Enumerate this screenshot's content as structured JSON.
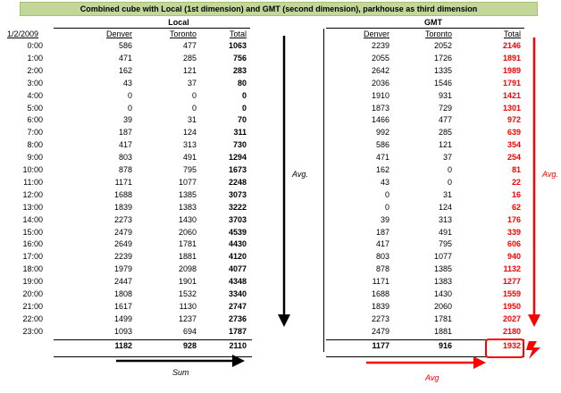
{
  "title": "Combined cube with Local (1st dimension) and GMT (second dimension), parkhouse as third dimension",
  "local": {
    "label": "Local",
    "date": "1/2/2009",
    "headers": [
      "Denver",
      "Toronto",
      "Total"
    ],
    "rows": [
      {
        "hour": "0:00",
        "denver": "586",
        "toronto": "477",
        "total": "1063"
      },
      {
        "hour": "1:00",
        "denver": "471",
        "toronto": "285",
        "total": "756"
      },
      {
        "hour": "2:00",
        "denver": "162",
        "toronto": "121",
        "total": "283"
      },
      {
        "hour": "3:00",
        "denver": "43",
        "toronto": "37",
        "total": "80"
      },
      {
        "hour": "4:00",
        "denver": "0",
        "toronto": "0",
        "total": "0"
      },
      {
        "hour": "5:00",
        "denver": "0",
        "toronto": "0",
        "total": "0"
      },
      {
        "hour": "6:00",
        "denver": "39",
        "toronto": "31",
        "total": "70"
      },
      {
        "hour": "7:00",
        "denver": "187",
        "toronto": "124",
        "total": "311"
      },
      {
        "hour": "8:00",
        "denver": "417",
        "toronto": "313",
        "total": "730"
      },
      {
        "hour": "9:00",
        "denver": "803",
        "toronto": "491",
        "total": "1294"
      },
      {
        "hour": "10:00",
        "denver": "878",
        "toronto": "795",
        "total": "1673"
      },
      {
        "hour": "11:00",
        "denver": "1171",
        "toronto": "1077",
        "total": "2248"
      },
      {
        "hour": "12:00",
        "denver": "1688",
        "toronto": "1385",
        "total": "3073"
      },
      {
        "hour": "13:00",
        "denver": "1839",
        "toronto": "1383",
        "total": "3222"
      },
      {
        "hour": "14:00",
        "denver": "2273",
        "toronto": "1430",
        "total": "3703"
      },
      {
        "hour": "15:00",
        "denver": "2479",
        "toronto": "2060",
        "total": "4539"
      },
      {
        "hour": "16:00",
        "denver": "2649",
        "toronto": "1781",
        "total": "4430"
      },
      {
        "hour": "17:00",
        "denver": "2239",
        "toronto": "1881",
        "total": "4120"
      },
      {
        "hour": "18:00",
        "denver": "1979",
        "toronto": "2098",
        "total": "4077"
      },
      {
        "hour": "19:00",
        "denver": "2447",
        "toronto": "1901",
        "total": "4348"
      },
      {
        "hour": "20:00",
        "denver": "1808",
        "toronto": "1532",
        "total": "3340"
      },
      {
        "hour": "21:00",
        "denver": "1617",
        "toronto": "1130",
        "total": "2747"
      },
      {
        "hour": "22:00",
        "denver": "1499",
        "toronto": "1237",
        "total": "2736"
      },
      {
        "hour": "23:00",
        "denver": "1093",
        "toronto": "694",
        "total": "1787"
      }
    ],
    "avg": {
      "denver": "1182",
      "toronto": "928",
      "total": "2110"
    }
  },
  "gmt": {
    "label": "GMT",
    "headers": [
      "Denver",
      "Toronto",
      "Total"
    ],
    "rows": [
      {
        "denver": "2239",
        "toronto": "2052",
        "total": "2146"
      },
      {
        "denver": "2055",
        "toronto": "1726",
        "total": "1891"
      },
      {
        "denver": "2642",
        "toronto": "1335",
        "total": "1989"
      },
      {
        "denver": "2036",
        "toronto": "1546",
        "total": "1791"
      },
      {
        "denver": "1910",
        "toronto": "931",
        "total": "1421"
      },
      {
        "denver": "1873",
        "toronto": "729",
        "total": "1301"
      },
      {
        "denver": "1466",
        "toronto": "477",
        "total": "972"
      },
      {
        "denver": "992",
        "toronto": "285",
        "total": "639"
      },
      {
        "denver": "586",
        "toronto": "121",
        "total": "354"
      },
      {
        "denver": "471",
        "toronto": "37",
        "total": "254"
      },
      {
        "denver": "162",
        "toronto": "0",
        "total": "81"
      },
      {
        "denver": "43",
        "toronto": "0",
        "total": "22"
      },
      {
        "denver": "0",
        "toronto": "31",
        "total": "16"
      },
      {
        "denver": "0",
        "toronto": "124",
        "total": "62"
      },
      {
        "denver": "39",
        "toronto": "313",
        "total": "176"
      },
      {
        "denver": "187",
        "toronto": "491",
        "total": "339"
      },
      {
        "denver": "417",
        "toronto": "795",
        "total": "606"
      },
      {
        "denver": "803",
        "toronto": "1077",
        "total": "940"
      },
      {
        "denver": "878",
        "toronto": "1385",
        "total": "1132"
      },
      {
        "denver": "1171",
        "toronto": "1383",
        "total": "1277"
      },
      {
        "denver": "1688",
        "toronto": "1430",
        "total": "1559"
      },
      {
        "denver": "1839",
        "toronto": "2060",
        "total": "1950"
      },
      {
        "denver": "2273",
        "toronto": "1781",
        "total": "2027"
      },
      {
        "denver": "2479",
        "toronto": "1881",
        "total": "2180"
      }
    ],
    "avg": {
      "denver": "1177",
      "toronto": "916",
      "total": "1932"
    }
  },
  "annotations": {
    "local_avg": "Avg.",
    "local_sum": "Sum",
    "gmt_avg_right": "Avg.",
    "gmt_avg_bottom": "Avg"
  },
  "colors": {
    "title_bg": "#c4d79b",
    "accent_red": "#ff0000"
  }
}
